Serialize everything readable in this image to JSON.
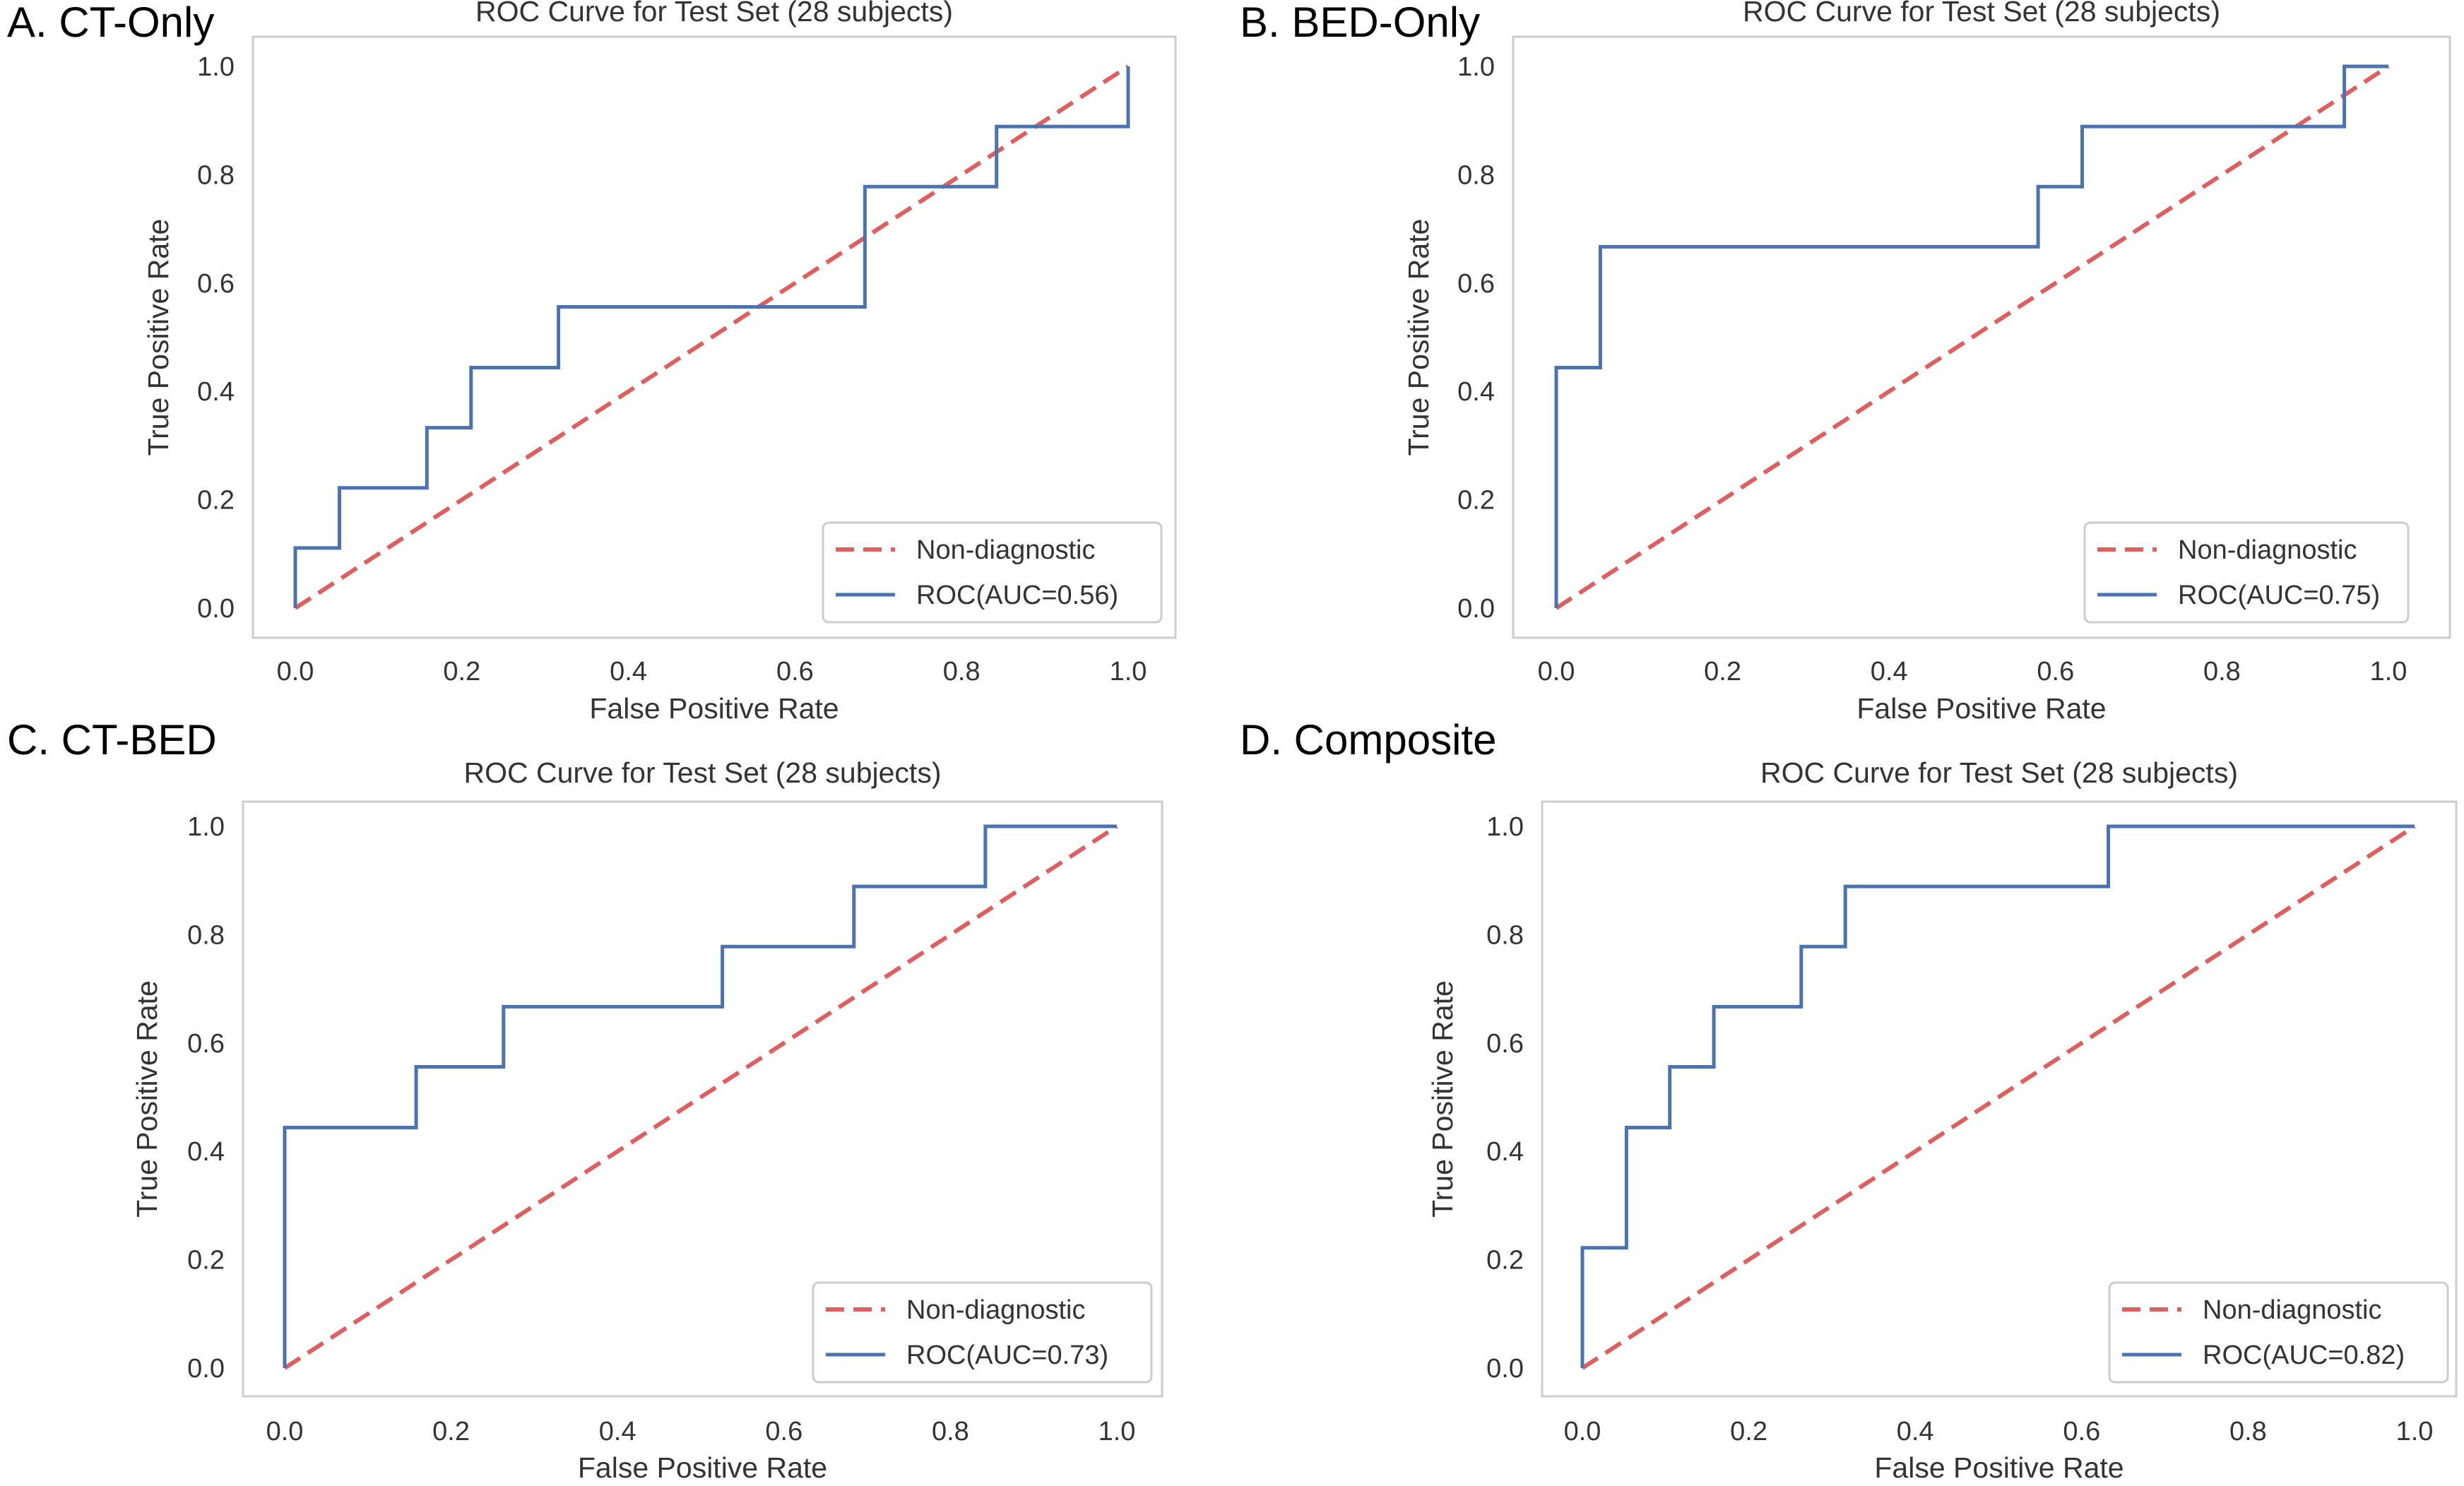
{
  "colors": {
    "roc": "#4c72b0",
    "diagonal": "#dd5f5f",
    "text": "#333333",
    "frame": "#cccccc"
  },
  "chart_data": [
    {
      "panel_label": "A. CT-Only",
      "type": "line",
      "title": "ROC Curve for Test Set (28 subjects)",
      "xlabel": "False Positive Rate",
      "ylabel": "True Positive Rate",
      "xlim": [
        0,
        1
      ],
      "ylim": [
        0,
        1
      ],
      "xticks": [
        "0.0",
        "0.2",
        "0.4",
        "0.6",
        "0.8",
        "1.0"
      ],
      "yticks": [
        "0.0",
        "0.2",
        "0.4",
        "0.6",
        "0.8",
        "1.0"
      ],
      "grid": false,
      "legend_position": "lower-right",
      "series": [
        {
          "name": "Non-diagnostic",
          "style": "dashed",
          "x": [
            0,
            1
          ],
          "y": [
            0,
            1
          ]
        },
        {
          "name": "ROC(AUC=0.56)",
          "style": "step",
          "x": [
            0,
            0,
            0.053,
            0.053,
            0.158,
            0.158,
            0.211,
            0.211,
            0.316,
            0.316,
            0.684,
            0.684,
            0.842,
            0.842,
            1.0,
            1.0
          ],
          "y": [
            0,
            0.111,
            0.111,
            0.222,
            0.222,
            0.333,
            0.333,
            0.444,
            0.444,
            0.556,
            0.556,
            0.778,
            0.778,
            0.889,
            0.889,
            1.0
          ]
        }
      ]
    },
    {
      "panel_label": "B. BED-Only",
      "type": "line",
      "title": "ROC Curve for Test Set (28 subjects)",
      "xlabel": "False Positive Rate",
      "ylabel": "True Positive Rate",
      "xlim": [
        0,
        1
      ],
      "ylim": [
        0,
        1
      ],
      "xticks": [
        "0.0",
        "0.2",
        "0.4",
        "0.6",
        "0.8",
        "1.0"
      ],
      "yticks": [
        "0.0",
        "0.2",
        "0.4",
        "0.6",
        "0.8",
        "1.0"
      ],
      "grid": false,
      "legend_position": "lower-right",
      "series": [
        {
          "name": "Non-diagnostic",
          "style": "dashed",
          "x": [
            0,
            1
          ],
          "y": [
            0,
            1
          ]
        },
        {
          "name": "ROC(AUC=0.75)",
          "style": "step",
          "x": [
            0,
            0,
            0.053,
            0.053,
            0.579,
            0.579,
            0.632,
            0.632,
            0.947,
            0.947,
            1.0
          ],
          "y": [
            0,
            0.444,
            0.444,
            0.667,
            0.667,
            0.778,
            0.778,
            0.889,
            0.889,
            1.0,
            1.0
          ]
        }
      ]
    },
    {
      "panel_label": "C. CT-BED",
      "type": "line",
      "title": "ROC Curve for Test Set (28 subjects)",
      "xlabel": "False Positive Rate",
      "ylabel": "True Positive Rate",
      "xlim": [
        0,
        1
      ],
      "ylim": [
        0,
        1
      ],
      "xticks": [
        "0.0",
        "0.2",
        "0.4",
        "0.6",
        "0.8",
        "1.0"
      ],
      "yticks": [
        "0.0",
        "0.2",
        "0.4",
        "0.6",
        "0.8",
        "1.0"
      ],
      "grid": false,
      "legend_position": "lower-right",
      "series": [
        {
          "name": "Non-diagnostic",
          "style": "dashed",
          "x": [
            0,
            1
          ],
          "y": [
            0,
            1
          ]
        },
        {
          "name": "ROC(AUC=0.73)",
          "style": "step",
          "x": [
            0,
            0,
            0.158,
            0.158,
            0.263,
            0.263,
            0.526,
            0.526,
            0.684,
            0.684,
            0.842,
            0.842,
            1.0
          ],
          "y": [
            0,
            0.444,
            0.444,
            0.556,
            0.556,
            0.667,
            0.667,
            0.778,
            0.778,
            0.889,
            0.889,
            1.0,
            1.0
          ]
        }
      ]
    },
    {
      "panel_label": "D. Composite",
      "type": "line",
      "title": "ROC Curve for Test Set (28 subjects)",
      "xlabel": "False Positive Rate",
      "ylabel": "True Positive Rate",
      "xlim": [
        0,
        1
      ],
      "ylim": [
        0,
        1
      ],
      "xticks": [
        "0.0",
        "0.2",
        "0.4",
        "0.6",
        "0.8",
        "1.0"
      ],
      "yticks": [
        "0.0",
        "0.2",
        "0.4",
        "0.6",
        "0.8",
        "1.0"
      ],
      "grid": false,
      "legend_position": "lower-right",
      "series": [
        {
          "name": "Non-diagnostic",
          "style": "dashed",
          "x": [
            0,
            1
          ],
          "y": [
            0,
            1
          ]
        },
        {
          "name": "ROC(AUC=0.82)",
          "style": "step",
          "x": [
            0,
            0,
            0.053,
            0.053,
            0.105,
            0.105,
            0.158,
            0.158,
            0.263,
            0.263,
            0.316,
            0.316,
            0.632,
            0.632,
            1.0
          ],
          "y": [
            0,
            0.222,
            0.222,
            0.444,
            0.444,
            0.556,
            0.556,
            0.667,
            0.667,
            0.778,
            0.778,
            0.889,
            0.889,
            1.0,
            1.0
          ]
        }
      ]
    }
  ]
}
